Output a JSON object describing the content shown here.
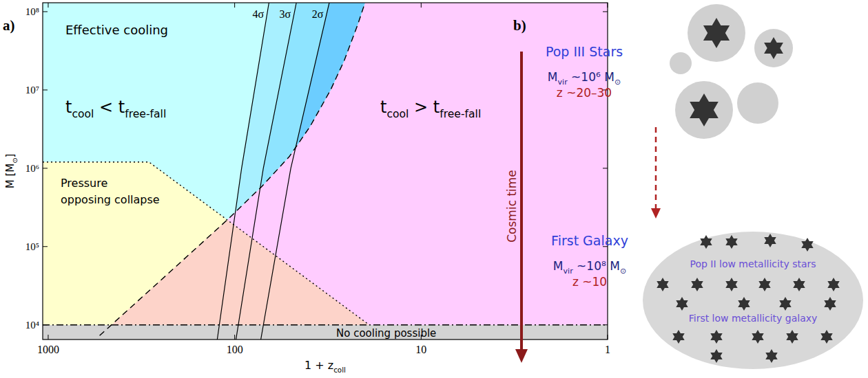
{
  "chart_data": {
    "type": "region",
    "panel_label": "a)",
    "xlabel": [
      "1 + z",
      "coll"
    ],
    "ylabel": [
      "M [M",
      "⊙",
      "]"
    ],
    "log": true,
    "xlim": [
      1070,
      1
    ],
    "ylim": [
      6500,
      130000000
    ],
    "xticks": [
      1000,
      100,
      10,
      1
    ],
    "yticks": [
      {
        "value": 10000,
        "label": "10⁴"
      },
      {
        "value": 100000,
        "label": "10⁵"
      },
      {
        "value": 1000000,
        "label": "10⁶"
      },
      {
        "value": 10000000,
        "label": "10⁷"
      },
      {
        "value": 100000000,
        "label": "10⁸"
      }
    ],
    "colors": [
      "#c4ffff",
      "#ffccff",
      "#ffffcc",
      "#fdd3c9",
      "#d3d3d3",
      "#a8f0ff",
      "#8ee4ff",
      "#6ccdff"
    ],
    "series": [
      {
        "x": [
          530,
          214,
          109,
          71.3,
          50.8,
          39.4,
          30.6,
          25.8,
          21.8,
          20
        ],
        "values": [
          7300,
          51500,
          222000,
          590000,
          1420000,
          3420000,
          10000000,
          24000000,
          70000000,
          130000000
        ],
        "line_style": "dashed",
        "color": "#000000"
      },
      {
        "x": [
          1070,
          288,
          19
        ],
        "values": [
          1200000,
          1200000,
          10000
        ],
        "line_style": "dotted",
        "color": "#000000"
      },
      {
        "x": [
          1070,
          1
        ],
        "values": [
          10000,
          10000
        ],
        "line_style": "dashdot",
        "color": "#000000"
      },
      {
        "name": "4σ",
        "x": [
          124,
          91.8,
          65.5
        ],
        "values": [
          6500,
          1000000,
          130000000
        ],
        "line_style": "solid",
        "color": "#000000"
      },
      {
        "name": "3σ",
        "x": [
          98.4,
          70.2,
          46.7
        ],
        "values": [
          6500,
          1000000,
          130000000
        ],
        "line_style": "solid",
        "color": "#000000"
      },
      {
        "name": "2σ",
        "x": [
          72.4,
          50.0,
          31.1
        ],
        "values": [
          6500,
          1000000,
          130000000
        ],
        "line_style": "solid",
        "color": "#000000"
      }
    ],
    "annotations": [
      {
        "text": "Effective cooling"
      },
      {
        "rich": [
          "t",
          "cool",
          " < t",
          "free-fall"
        ]
      },
      {
        "rich": [
          "t",
          "cool",
          " > t",
          "free-fall"
        ]
      },
      {
        "lines": [
          "Pressure",
          "opposing collapse"
        ]
      },
      {
        "text": "No cooling possible"
      }
    ]
  },
  "diagram": {
    "label": "b)",
    "axis_label": "Cosmic time",
    "stages": [
      {
        "title": "Pop III Stars",
        "mass": [
          "M",
          "vir",
          " ~10⁶ M",
          "⊙"
        ],
        "redshift": "z ~20–30"
      },
      {
        "title": "First Galaxy",
        "mass": [
          "M",
          "vir",
          " ~10⁸ M",
          "⊙"
        ],
        "redshift": "z ~10",
        "labels": [
          "Pop II low metallicity stars",
          "First low metallicity galaxy"
        ]
      }
    ]
  }
}
